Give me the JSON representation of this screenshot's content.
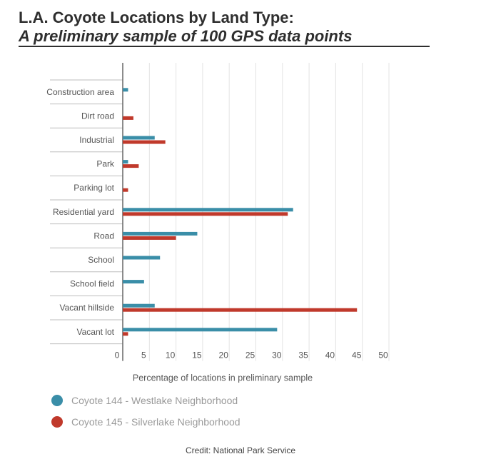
{
  "header": {
    "title": "L.A. Coyote Locations by Land Type:",
    "subtitle": "A preliminary sample of 100 GPS data points"
  },
  "chart_data": {
    "type": "bar",
    "orientation": "horizontal",
    "categories": [
      "Construction area",
      "Dirt road",
      "Industrial",
      "Park",
      "Parking lot",
      "Residential yard",
      "Road",
      "School",
      "School field",
      "Vacant hillside",
      "Vacant lot"
    ],
    "series": [
      {
        "name": "Coyote 144 - Westlake Neighborhood",
        "color": "#3a8ea8",
        "values": [
          1,
          0,
          6,
          1,
          0,
          32,
          14,
          7,
          4,
          6,
          29
        ]
      },
      {
        "name": "Coyote 145 - Silverlake Neighborhood",
        "color": "#c0392b",
        "values": [
          0,
          2,
          8,
          3,
          1,
          31,
          10,
          0,
          0,
          44,
          1
        ]
      }
    ],
    "xlabel": "Percentage of locations in preliminary sample",
    "ylabel": "",
    "xlim": [
      0,
      50
    ],
    "xticks": [
      "0",
      "5",
      "10",
      "15",
      "20",
      "25",
      "30",
      "35",
      "40",
      "45",
      "50"
    ],
    "grid": true,
    "legend": "bottom-left"
  },
  "credit": "Credit: National Park Service"
}
